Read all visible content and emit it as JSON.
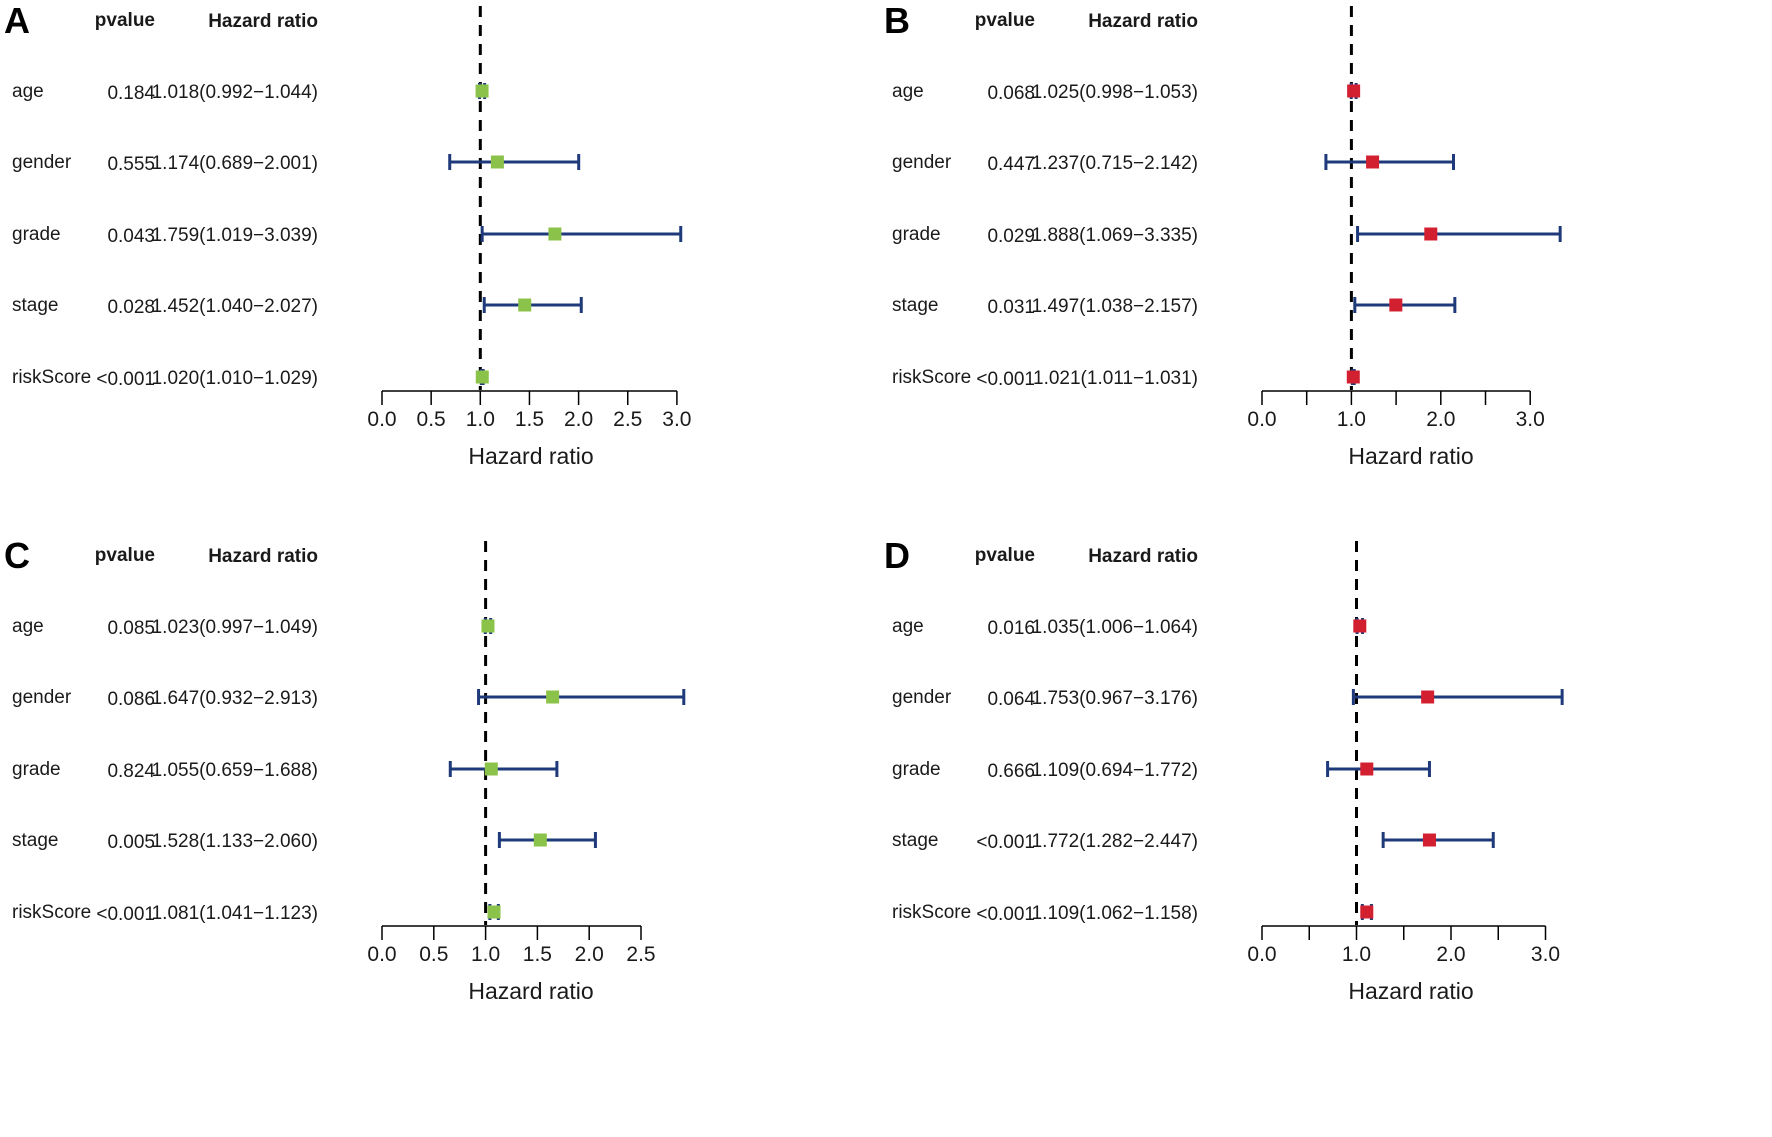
{
  "figure": {
    "column_headers": {
      "pvalue": "pvalue",
      "hazard": "Hazard ratio"
    }
  },
  "chart_data": [
    {
      "type": "forest",
      "panel": "A",
      "xlabel": "Hazard ratio",
      "xlim": [
        0.0,
        3.0
      ],
      "ticks": [
        0.0,
        0.5,
        1.0,
        1.5,
        2.0,
        2.5,
        3.0
      ],
      "tick_labels": [
        "0.0",
        "0.5",
        "1.0",
        "1.5",
        "2.0",
        "2.5",
        "3.0"
      ],
      "reference_line": 1.0,
      "marker_color": "#8bc34a",
      "rows": [
        {
          "name": "age",
          "pvalue": "0.184",
          "hr_text": "1.018(0.992−1.044)",
          "hr": 1.018,
          "lo": 0.992,
          "hi": 1.044
        },
        {
          "name": "gender",
          "pvalue": "0.555",
          "hr_text": "1.174(0.689−2.001)",
          "hr": 1.174,
          "lo": 0.689,
          "hi": 2.001
        },
        {
          "name": "grade",
          "pvalue": "0.043",
          "hr_text": "1.759(1.019−3.039)",
          "hr": 1.759,
          "lo": 1.019,
          "hi": 3.039
        },
        {
          "name": "stage",
          "pvalue": "0.028",
          "hr_text": "1.452(1.040−2.027)",
          "hr": 1.452,
          "lo": 1.04,
          "hi": 2.027
        },
        {
          "name": "riskScore",
          "pvalue": "<0.001",
          "hr_text": "1.020(1.010−1.029)",
          "hr": 1.02,
          "lo": 1.01,
          "hi": 1.029
        }
      ]
    },
    {
      "type": "forest",
      "panel": "B",
      "xlabel": "Hazard ratio",
      "xlim": [
        0.0,
        3.0
      ],
      "ticks": [
        0.0,
        0.5,
        1.0,
        1.5,
        2.0,
        2.5,
        3.0
      ],
      "tick_labels": [
        "0.0",
        "",
        "1.0",
        "",
        "2.0",
        "",
        "3.0"
      ],
      "reference_line": 1.0,
      "marker_color": "#d32030",
      "rows": [
        {
          "name": "age",
          "pvalue": "0.068",
          "hr_text": "1.025(0.998−1.053)",
          "hr": 1.025,
          "lo": 0.998,
          "hi": 1.053
        },
        {
          "name": "gender",
          "pvalue": "0.447",
          "hr_text": "1.237(0.715−2.142)",
          "hr": 1.237,
          "lo": 0.715,
          "hi": 2.142
        },
        {
          "name": "grade",
          "pvalue": "0.029",
          "hr_text": "1.888(1.069−3.335)",
          "hr": 1.888,
          "lo": 1.069,
          "hi": 3.335
        },
        {
          "name": "stage",
          "pvalue": "0.031",
          "hr_text": "1.497(1.038−2.157)",
          "hr": 1.497,
          "lo": 1.038,
          "hi": 2.157
        },
        {
          "name": "riskScore",
          "pvalue": "<0.001",
          "hr_text": "1.021(1.011−1.031)",
          "hr": 1.021,
          "lo": 1.011,
          "hi": 1.031
        }
      ]
    },
    {
      "type": "forest",
      "panel": "C",
      "xlabel": "Hazard ratio",
      "xlim": [
        0.0,
        2.5
      ],
      "ticks": [
        0.0,
        0.5,
        1.0,
        1.5,
        2.0,
        2.5
      ],
      "tick_labels": [
        "0.0",
        "0.5",
        "1.0",
        "1.5",
        "2.0",
        "2.5"
      ],
      "reference_line": 1.0,
      "marker_color": "#8bc34a",
      "rows": [
        {
          "name": "age",
          "pvalue": "0.085",
          "hr_text": "1.023(0.997−1.049)",
          "hr": 1.023,
          "lo": 0.997,
          "hi": 1.049
        },
        {
          "name": "gender",
          "pvalue": "0.086",
          "hr_text": "1.647(0.932−2.913)",
          "hr": 1.647,
          "lo": 0.932,
          "hi": 2.913
        },
        {
          "name": "grade",
          "pvalue": "0.824",
          "hr_text": "1.055(0.659−1.688)",
          "hr": 1.055,
          "lo": 0.659,
          "hi": 1.688
        },
        {
          "name": "stage",
          "pvalue": "0.005",
          "hr_text": "1.528(1.133−2.060)",
          "hr": 1.528,
          "lo": 1.133,
          "hi": 2.06
        },
        {
          "name": "riskScore",
          "pvalue": "<0.001",
          "hr_text": "1.081(1.041−1.123)",
          "hr": 1.081,
          "lo": 1.041,
          "hi": 1.123
        }
      ]
    },
    {
      "type": "forest",
      "panel": "D",
      "xlabel": "Hazard ratio",
      "xlim": [
        0.0,
        3.0
      ],
      "ticks": [
        0.0,
        0.5,
        1.0,
        1.5,
        2.0,
        2.5,
        3.0
      ],
      "tick_labels": [
        "0.0",
        "",
        "1.0",
        "",
        "2.0",
        "",
        "3.0"
      ],
      "reference_line": 1.0,
      "marker_color": "#d32030",
      "rows": [
        {
          "name": "age",
          "pvalue": "0.016",
          "hr_text": "1.035(1.006−1.064)",
          "hr": 1.035,
          "lo": 1.006,
          "hi": 1.064
        },
        {
          "name": "gender",
          "pvalue": "0.064",
          "hr_text": "1.753(0.967−3.176)",
          "hr": 1.753,
          "lo": 0.967,
          "hi": 3.176
        },
        {
          "name": "grade",
          "pvalue": "0.666",
          "hr_text": "1.109(0.694−1.772)",
          "hr": 1.109,
          "lo": 0.694,
          "hi": 1.772
        },
        {
          "name": "stage",
          "pvalue": "<0.001",
          "hr_text": "1.772(1.282−2.447)",
          "hr": 1.772,
          "lo": 1.282,
          "hi": 2.447
        },
        {
          "name": "riskScore",
          "pvalue": "<0.001",
          "hr_text": "1.109(1.062−1.158)",
          "hr": 1.109,
          "lo": 1.062,
          "hi": 1.158
        }
      ]
    }
  ]
}
